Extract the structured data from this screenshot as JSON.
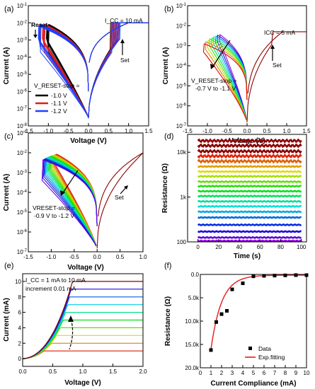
{
  "panels": [
    {
      "id": "a",
      "label": "(a)",
      "chart_data": {
        "type": "line",
        "xlabel": "Voltage (V)",
        "ylabel": "Current (A)",
        "xlim": [
          -1.5,
          1.5
        ],
        "ylim": [
          1e-08,
          0.1
        ],
        "yscale": "log",
        "xticks": [
          "-1.5",
          "-1.0",
          "-0.5",
          "0.0",
          "0.5",
          "1.0",
          "1.5"
        ],
        "yticks": [
          "10^-8",
          "10^-7",
          "10^-6",
          "10^-5",
          "10^-4",
          "10^-3",
          "10^-2",
          "10^-1"
        ],
        "annotations": [
          "Reset",
          "I_CC = 10 mA",
          "Set"
        ],
        "legend_title": "V_RESET-stop =",
        "legend_placement": "bottom-left",
        "series": [
          {
            "name": "-1.0 V",
            "color": "#000000",
            "reset_stop": -1.0
          },
          {
            "name": "-1.1 V",
            "color": "#e41a1c",
            "reset_stop": -1.1
          },
          {
            "name": "-1.2 V",
            "color": "#1f3fff",
            "reset_stop": -1.2
          }
        ]
      }
    },
    {
      "id": "b",
      "label": "(b)",
      "chart_data": {
        "type": "line",
        "xlabel": "Voltage (V)",
        "ylabel": "Current (A)",
        "xlim": [
          -1.5,
          1.5
        ],
        "ylim": [
          1e-07,
          0.1
        ],
        "yscale": "log",
        "xticks": [
          "-1.5",
          "-1.0",
          "-0.5",
          "0.0",
          "0.5",
          "1.0",
          "1.5"
        ],
        "yticks": [
          "10^-7",
          "10^-6",
          "10^-5",
          "10^-4",
          "10^-3",
          "10^-2",
          "10^-1"
        ],
        "annotations": [
          "ICC = 5 mA",
          "Set",
          "V_RESET-stop =",
          "-0.7 V to -1.1 V"
        ],
        "reset_stop_range": [
          -0.7,
          -1.1
        ],
        "curve_count": 9,
        "icc": 0.005
      }
    },
    {
      "id": "c",
      "label": "(c)",
      "chart_data": {
        "type": "line",
        "xlabel": "Voltage (V)",
        "ylabel": "Current (A)",
        "xlim": [
          -1.5,
          1.0
        ],
        "ylim": [
          1e-07,
          0.1
        ],
        "yscale": "log",
        "xticks": [
          "-1.5",
          "-1.0",
          "-0.5",
          "0.0",
          "0.5",
          "1.0"
        ],
        "yticks": [
          "10^-7",
          "10^-6",
          "10^-5",
          "10^-4",
          "10^-3",
          "10^-2",
          "10^-1"
        ],
        "annotations": [
          "VRESET-stop =",
          "-0.9 V to -1.2 V",
          "Set"
        ],
        "reset_stop_range": [
          -0.9,
          -1.2
        ],
        "curve_count": 16
      }
    },
    {
      "id": "d",
      "label": "(d)",
      "chart_data": {
        "type": "scatter",
        "xlabel": "Time (s)",
        "ylabel": "Resistance (Ω)",
        "xlim": [
          -10,
          105
        ],
        "ylim": [
          100,
          25000
        ],
        "yscale": "log",
        "xticks": [
          "0",
          "10",
          "20",
          "30",
          "40",
          "50",
          "60",
          "70",
          "80",
          "90",
          "100"
        ],
        "yticks": [
          "100",
          "1k",
          "10k"
        ],
        "levels": [
          18000,
          14000,
          10500,
          8200,
          6300,
          4800,
          3700,
          2900,
          2200,
          1750,
          1350,
          1050,
          800,
          620,
          470,
          350,
          240,
          170,
          125,
          105
        ],
        "time_range": [
          0,
          100
        ]
      }
    },
    {
      "id": "e",
      "label": "(e)",
      "chart_data": {
        "type": "line",
        "xlabel": "Voltage (V)",
        "ylabel": "Current (mA)",
        "xlim": [
          0,
          2.0
        ],
        "ylim": [
          -1,
          11
        ],
        "xticks": [
          "0.0",
          "0.5",
          "1.0",
          "1.5",
          "2.0"
        ],
        "yticks": [
          "0",
          "2",
          "4",
          "6",
          "8",
          "10"
        ],
        "annotations": [
          "I_CC = 1 mA to 10 mA",
          "increment 0.01 mA"
        ],
        "compliance_levels_mA": [
          1,
          2,
          3,
          4,
          5,
          6,
          7,
          8,
          9,
          10
        ]
      }
    },
    {
      "id": "f",
      "label": "(f)",
      "chart_data": {
        "type": "scatter",
        "xlabel": "Current Compliance (mA)",
        "ylabel": "Resistance (Ω)",
        "xlim": [
          0,
          10
        ],
        "ylim": [
          20000,
          0
        ],
        "xticks": [
          "0",
          "1",
          "2",
          "3",
          "4",
          "5",
          "6",
          "7",
          "8",
          "9",
          "10"
        ],
        "yticks": [
          "0.0",
          "5.0k",
          "10.0k",
          "15.0k",
          "20.0k"
        ],
        "legend": [
          "Data",
          "Exp.fitting"
        ],
        "legend_placement": "bottom-right",
        "data": {
          "x": [
            1,
            1.5,
            2,
            2.5,
            3,
            4,
            5,
            6,
            7,
            8,
            9,
            10
          ],
          "y": [
            16200,
            10200,
            8500,
            7800,
            3200,
            1900,
            400,
            300,
            250,
            200,
            150,
            150
          ]
        },
        "fit_color": "#e41a1c"
      }
    }
  ]
}
